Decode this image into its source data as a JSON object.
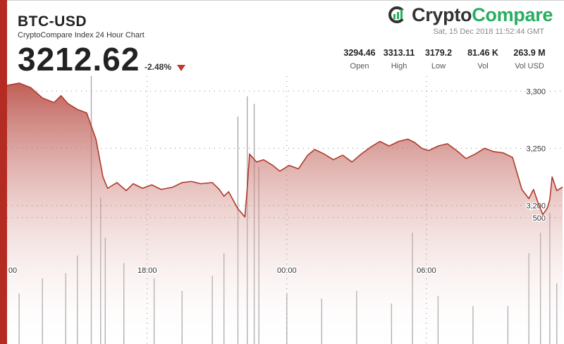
{
  "header": {
    "pair": "BTC-USD",
    "subtitle": "CryptoCompare Index 24 Hour Chart",
    "price": "3212.62",
    "change": "-2.48%",
    "timestamp": "Sat, 15 Dec 2018 11:52:44 GMT"
  },
  "logo": {
    "part1": "Crypto",
    "part2": "Compare",
    "icon": "cryptocompare-logo-icon"
  },
  "stats": [
    {
      "value": "3294.46",
      "label": "Open"
    },
    {
      "value": "3313.11",
      "label": "High"
    },
    {
      "value": "3179.2",
      "label": "Low"
    },
    {
      "value": "81.46 K",
      "label": "Vol"
    },
    {
      "value": "263.9 M",
      "label": "Vol USD"
    }
  ],
  "colors": {
    "accent": "#b42b22",
    "line": "#b03a2e",
    "up_logo": "#27ae60",
    "volume": "#9e9e9e"
  },
  "chart_data": {
    "type": "area",
    "price_ylim": [
      3171.3,
      3313.11
    ],
    "price_ticks": [
      "3,300",
      "3,250",
      "3,200"
    ],
    "price_tick_values": [
      3300,
      3250,
      3200
    ],
    "time_ticks": [
      "00",
      "18:00",
      "00:00",
      "06:00"
    ],
    "time_tick_hours": [
      12,
      18,
      24,
      30
    ],
    "x_range_hours": [
      11.98,
      35.85
    ],
    "volume_ticks": [
      "500"
    ],
    "volume_tick_values": [
      500
    ],
    "volume_ylim": [
      0,
      1060
    ],
    "grid": true,
    "series": [
      {
        "x": [
          11.98,
          12.5,
          13.0,
          13.5,
          14.0,
          14.3,
          14.6,
          15.0,
          15.4,
          15.8,
          16.1,
          16.3,
          16.7,
          17.1,
          17.4,
          17.8,
          18.2,
          18.6,
          19.1,
          19.5,
          19.9,
          20.3,
          20.8,
          21.1,
          21.3,
          21.5,
          21.9,
          22.2,
          22.3,
          22.4,
          22.7,
          23.0,
          23.4,
          23.7,
          24.1,
          24.5,
          24.9,
          25.2,
          25.6,
          26.0,
          26.4,
          26.8,
          27.2,
          27.6,
          28.0,
          28.4,
          28.8,
          29.2,
          29.5,
          29.8,
          30.1,
          30.5,
          30.9,
          31.3,
          31.7,
          32.1,
          32.5,
          32.9,
          33.3,
          33.7,
          34.1,
          34.4,
          34.6,
          34.8,
          35.0,
          35.2,
          35.3,
          35.4,
          35.6,
          35.85
        ],
        "y": [
          3305,
          3307,
          3303,
          3294,
          3290,
          3296,
          3289,
          3284,
          3281,
          3258,
          3225,
          3215,
          3220,
          3213,
          3219,
          3215,
          3218,
          3214,
          3216,
          3220,
          3221,
          3219,
          3220,
          3214,
          3208,
          3212,
          3197,
          3190,
          3215,
          3245,
          3238,
          3240,
          3235,
          3230,
          3235,
          3232,
          3244,
          3249,
          3245,
          3240,
          3244,
          3238,
          3245,
          3251,
          3256,
          3252,
          3256,
          3258,
          3255,
          3250,
          3248,
          3252,
          3254,
          3248,
          3241,
          3245,
          3250,
          3247,
          3246,
          3242,
          3214,
          3206,
          3214,
          3202,
          3192,
          3198,
          3205,
          3225,
          3213,
          3216
        ]
      }
    ],
    "volume": {
      "x": [
        12.5,
        13.5,
        14.5,
        15.0,
        15.6,
        16.0,
        16.2,
        17.0,
        18.3,
        19.5,
        20.8,
        21.3,
        21.9,
        22.3,
        22.6,
        22.8,
        24.0,
        25.5,
        27.0,
        28.5,
        29.4,
        30.5,
        32.0,
        33.5,
        34.4,
        34.9,
        35.3,
        35.6
      ],
      "y": [
        200,
        260,
        280,
        350,
        1060,
        580,
        420,
        320,
        260,
        210,
        270,
        360,
        900,
        980,
        950,
        700,
        200,
        180,
        210,
        160,
        440,
        190,
        150,
        150,
        360,
        440,
        520,
        240
      ]
    }
  }
}
